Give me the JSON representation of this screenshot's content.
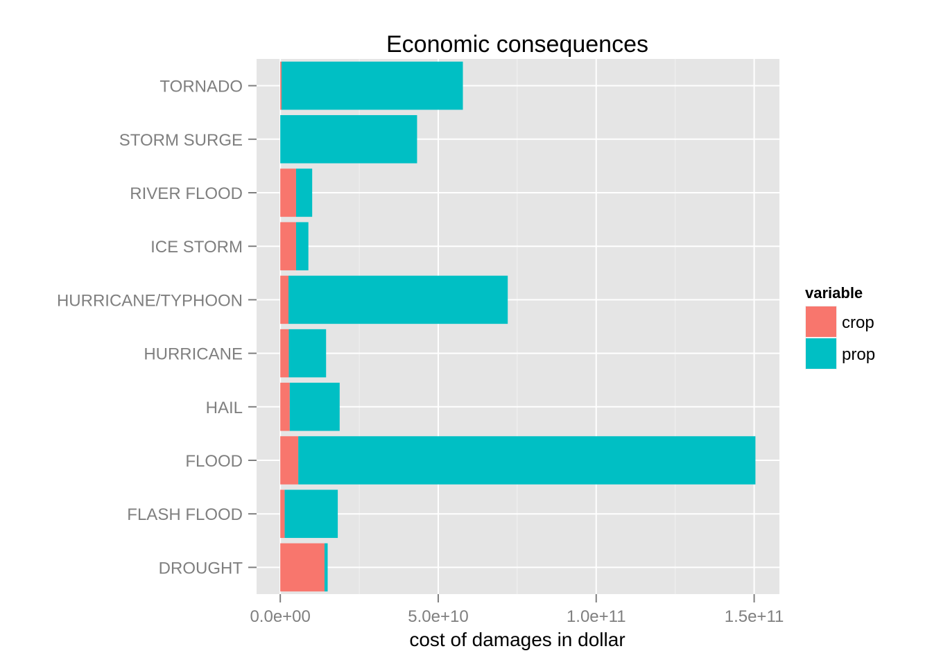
{
  "colors": {
    "crop": "#F8766D",
    "prop": "#00BFC4",
    "panel": "#E5E5E5",
    "grid": "#FFFFFF",
    "tick_text": "#7F7F7F"
  },
  "chart_data": {
    "type": "bar",
    "orientation": "horizontal",
    "stacked": true,
    "title": "Economic consequences",
    "xlabel": "cost of damages in dollar",
    "ylabel": "",
    "xlim": [
      -7500000000,
      158000000000
    ],
    "xticks": [
      0,
      50000000000,
      100000000000,
      150000000000
    ],
    "xtick_labels": [
      "0.0e+00",
      "5.0e+10",
      "1.0e+11",
      "1.5e+11"
    ],
    "grid": true,
    "categories": [
      "TORNADO",
      "STORM SURGE",
      "RIVER FLOOD",
      "ICE STORM",
      "HURRICANE/TYPHOON",
      "HURRICANE",
      "HAIL",
      "FLOOD",
      "FLASH FLOOD",
      "DROUGHT"
    ],
    "series": [
      {
        "name": "crop",
        "values": [
          400000000,
          0,
          5000000000,
          5000000000,
          2600000000,
          2700000000,
          3000000000,
          5700000000,
          1400000000,
          14000000000
        ]
      },
      {
        "name": "prop",
        "values": [
          57400000000,
          43300000000,
          5100000000,
          3900000000,
          69400000000,
          11800000000,
          15800000000,
          144700000000,
          16800000000,
          1000000000
        ]
      }
    ],
    "legend": {
      "title": "variable",
      "position": "right",
      "entries": [
        "crop",
        "prop"
      ]
    }
  }
}
